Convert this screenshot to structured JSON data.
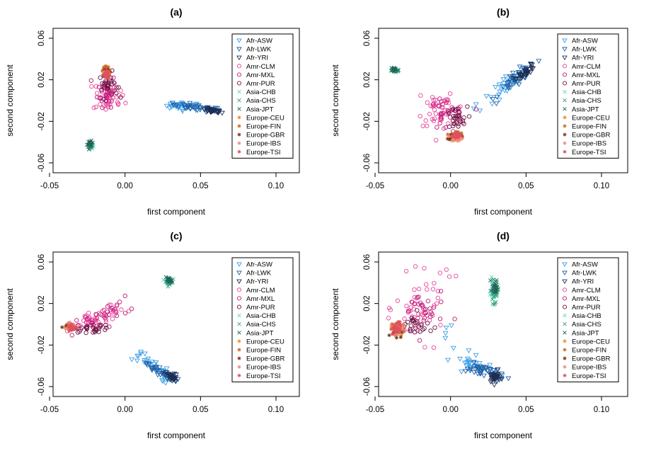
{
  "chart_data": [
    {
      "type": "scatter",
      "title": "(a)",
      "xlabel": "first component",
      "ylabel": "second component",
      "xlim": [
        -0.05,
        0.12
      ],
      "ylim": [
        -0.07,
        0.07
      ],
      "xticks": [
        -0.05,
        0.0,
        0.05,
        0.1
      ],
      "xtick_labels": [
        "-0.05",
        "0.00",
        "0.05",
        "0.10"
      ],
      "yticks": [
        -0.06,
        -0.02,
        0.02,
        0.06
      ],
      "ytick_labels": [
        "-0.06",
        "-0.02",
        "0.02",
        "0.06"
      ],
      "legend_position": "top-right",
      "clusters": [
        {
          "group": "Afr-ASW",
          "cx": 0.04,
          "cy": -0.005,
          "sx": 0.006,
          "sy": 0.002,
          "n": 25,
          "trail": [
            -0.015,
            0.0
          ],
          "slope": -0.08
        },
        {
          "group": "Afr-LWK",
          "cx": 0.048,
          "cy": -0.007,
          "sx": 0.008,
          "sy": 0.0015,
          "n": 40,
          "slope": -0.18
        },
        {
          "group": "Afr-YRI",
          "cx": 0.058,
          "cy": -0.01,
          "sx": 0.003,
          "sy": 0.001,
          "n": 30,
          "slope": -0.2
        },
        {
          "group": "Amr-CLM",
          "cx": -0.013,
          "cy": 0.005,
          "sx": 0.004,
          "sy": 0.008,
          "n": 40,
          "trail": [
            0.013,
            -0.003
          ]
        },
        {
          "group": "Amr-MXL",
          "cx": -0.012,
          "cy": 0.01,
          "sx": 0.003,
          "sy": 0.008,
          "n": 30
        },
        {
          "group": "Amr-PUR",
          "cx": -0.011,
          "cy": 0.015,
          "sx": 0.003,
          "sy": 0.006,
          "n": 25
        },
        {
          "group": "Asia-CHB",
          "cx": -0.023,
          "cy": -0.044,
          "sx": 0.0008,
          "sy": 0.0015,
          "n": 20
        },
        {
          "group": "Asia-CHS",
          "cx": -0.023,
          "cy": -0.043,
          "sx": 0.0008,
          "sy": 0.0015,
          "n": 20
        },
        {
          "group": "Asia-JPT",
          "cx": -0.023,
          "cy": -0.042,
          "sx": 0.0008,
          "sy": 0.0015,
          "n": 15
        },
        {
          "group": "Europe-CEU",
          "cx": -0.012,
          "cy": 0.028,
          "sx": 0.0012,
          "sy": 0.002,
          "n": 25
        },
        {
          "group": "Europe-FIN",
          "cx": -0.013,
          "cy": 0.029,
          "sx": 0.0012,
          "sy": 0.0018,
          "n": 25
        },
        {
          "group": "Europe-GBR",
          "cx": -0.012,
          "cy": 0.027,
          "sx": 0.0012,
          "sy": 0.002,
          "n": 20
        },
        {
          "group": "Europe-IBS",
          "cx": -0.012,
          "cy": 0.026,
          "sx": 0.0012,
          "sy": 0.002,
          "n": 20
        },
        {
          "group": "Europe-TSI",
          "cx": -0.012,
          "cy": 0.025,
          "sx": 0.0012,
          "sy": 0.002,
          "n": 25
        }
      ]
    },
    {
      "type": "scatter",
      "title": "(b)",
      "xlabel": "first component",
      "ylabel": "second component",
      "xlim": [
        -0.05,
        0.12
      ],
      "ylim": [
        -0.07,
        0.07
      ],
      "xticks": [
        -0.05,
        0.0,
        0.05,
        0.1
      ],
      "xtick_labels": [
        "-0.05",
        "0.00",
        "0.05",
        "0.10"
      ],
      "yticks": [
        -0.06,
        -0.02,
        0.02,
        0.06
      ],
      "ytick_labels": [
        "-0.06",
        "-0.02",
        "0.02",
        "0.06"
      ],
      "legend_position": "top-right",
      "clusters": [
        {
          "group": "Afr-ASW",
          "cx": 0.038,
          "cy": 0.014,
          "sx": 0.006,
          "sy": 0.005,
          "n": 25,
          "trail": [
            -0.025,
            -0.02
          ],
          "slope": 1.0
        },
        {
          "group": "Afr-LWK",
          "cx": 0.044,
          "cy": 0.021,
          "sx": 0.006,
          "sy": 0.004,
          "n": 40,
          "slope": 1.0
        },
        {
          "group": "Afr-YRI",
          "cx": 0.05,
          "cy": 0.028,
          "sx": 0.003,
          "sy": 0.002,
          "n": 30,
          "slope": 1.0
        },
        {
          "group": "Amr-CLM",
          "cx": -0.005,
          "cy": -0.01,
          "sx": 0.008,
          "sy": 0.007,
          "n": 40,
          "trail": [
            -0.015,
            0.015
          ]
        },
        {
          "group": "Amr-MXL",
          "cx": -0.002,
          "cy": -0.014,
          "sx": 0.006,
          "sy": 0.007,
          "n": 30
        },
        {
          "group": "Amr-PUR",
          "cx": 0.003,
          "cy": -0.018,
          "sx": 0.004,
          "sy": 0.006,
          "n": 25
        },
        {
          "group": "Asia-CHB",
          "cx": -0.037,
          "cy": 0.029,
          "sx": 0.0012,
          "sy": 0.0012,
          "n": 20
        },
        {
          "group": "Asia-CHS",
          "cx": -0.037,
          "cy": 0.029,
          "sx": 0.0012,
          "sy": 0.0012,
          "n": 20
        },
        {
          "group": "Asia-JPT",
          "cx": -0.037,
          "cy": 0.03,
          "sx": 0.0012,
          "sy": 0.0012,
          "n": 15
        },
        {
          "group": "Europe-CEU",
          "cx": 0.003,
          "cy": -0.034,
          "sx": 0.002,
          "sy": 0.0015,
          "n": 25
        },
        {
          "group": "Europe-FIN",
          "cx": 0.004,
          "cy": -0.033,
          "sx": 0.002,
          "sy": 0.0015,
          "n": 25
        },
        {
          "group": "Europe-GBR",
          "cx": 0.003,
          "cy": -0.035,
          "sx": 0.002,
          "sy": 0.0015,
          "n": 20
        },
        {
          "group": "Europe-IBS",
          "cx": 0.004,
          "cy": -0.036,
          "sx": 0.002,
          "sy": 0.0015,
          "n": 20
        },
        {
          "group": "Europe-TSI",
          "cx": 0.003,
          "cy": -0.034,
          "sx": 0.002,
          "sy": 0.0015,
          "n": 25
        }
      ]
    },
    {
      "type": "scatter",
      "title": "(c)",
      "xlabel": "first component",
      "ylabel": "second component",
      "xlim": [
        -0.05,
        0.12
      ],
      "ylim": [
        -0.07,
        0.07
      ],
      "xticks": [
        -0.05,
        0.0,
        0.05,
        0.1
      ],
      "xtick_labels": [
        "-0.05",
        "0.00",
        "0.05",
        "0.10"
      ],
      "yticks": [
        -0.06,
        -0.02,
        0.02,
        0.06
      ],
      "ytick_labels": [
        "-0.06",
        "-0.02",
        "0.02",
        "0.06"
      ],
      "legend_position": "top-right",
      "clusters": [
        {
          "group": "Afr-ASW",
          "cx": 0.018,
          "cy": -0.04,
          "sx": 0.006,
          "sy": 0.004,
          "n": 25,
          "trail": [
            -0.012,
            0.01
          ],
          "slope": -1.0
        },
        {
          "group": "Afr-LWK",
          "cx": 0.024,
          "cy": -0.046,
          "sx": 0.005,
          "sy": 0.002,
          "n": 40,
          "slope": -0.8
        },
        {
          "group": "Afr-YRI",
          "cx": 0.031,
          "cy": -0.051,
          "sx": 0.002,
          "sy": 0.002,
          "n": 30,
          "slope": -0.5
        },
        {
          "group": "Amr-CLM",
          "cx": -0.018,
          "cy": 0.005,
          "sx": 0.009,
          "sy": 0.005,
          "n": 40,
          "trail": [
            0.02,
            0.01
          ],
          "slope": 0.6
        },
        {
          "group": "Amr-MXL",
          "cx": -0.015,
          "cy": 0.008,
          "sx": 0.009,
          "sy": 0.005,
          "n": 30,
          "slope": 0.6
        },
        {
          "group": "Amr-PUR",
          "cx": -0.022,
          "cy": -0.004,
          "sx": 0.006,
          "sy": 0.002,
          "n": 25
        },
        {
          "group": "Asia-CHB",
          "cx": 0.029,
          "cy": 0.042,
          "sx": 0.0012,
          "sy": 0.0015,
          "n": 20
        },
        {
          "group": "Asia-CHS",
          "cx": 0.029,
          "cy": 0.041,
          "sx": 0.0012,
          "sy": 0.0015,
          "n": 20
        },
        {
          "group": "Asia-JPT",
          "cx": 0.029,
          "cy": 0.042,
          "sx": 0.0012,
          "sy": 0.0015,
          "n": 15
        },
        {
          "group": "Europe-CEU",
          "cx": -0.036,
          "cy": -0.002,
          "sx": 0.0015,
          "sy": 0.0012,
          "n": 25
        },
        {
          "group": "Europe-FIN",
          "cx": -0.035,
          "cy": -0.002,
          "sx": 0.0015,
          "sy": 0.0012,
          "n": 25
        },
        {
          "group": "Europe-GBR",
          "cx": -0.036,
          "cy": -0.003,
          "sx": 0.0015,
          "sy": 0.0012,
          "n": 20
        },
        {
          "group": "Europe-IBS",
          "cx": -0.036,
          "cy": -0.002,
          "sx": 0.0015,
          "sy": 0.0012,
          "n": 20
        },
        {
          "group": "Europe-TSI",
          "cx": -0.035,
          "cy": -0.003,
          "sx": 0.0015,
          "sy": 0.0012,
          "n": 25
        }
      ]
    },
    {
      "type": "scatter",
      "title": "(d)",
      "xlabel": "first component",
      "ylabel": "second component",
      "xlim": [
        -0.05,
        0.12
      ],
      "ylim": [
        -0.07,
        0.07
      ],
      "xticks": [
        -0.05,
        0.0,
        0.05,
        0.1
      ],
      "xtick_labels": [
        "-0.05",
        "0.00",
        "0.05",
        "0.10"
      ],
      "yticks": [
        -0.06,
        -0.02,
        0.02,
        0.06
      ],
      "ytick_labels": [
        "-0.06",
        "-0.02",
        "0.02",
        "0.06"
      ],
      "legend_position": "top-right",
      "clusters": [
        {
          "group": "Afr-ASW",
          "cx": 0.015,
          "cy": -0.04,
          "sx": 0.007,
          "sy": 0.004,
          "n": 25,
          "trail": [
            -0.02,
            0.04
          ],
          "slope": -0.4
        },
        {
          "group": "Afr-LWK",
          "cx": 0.022,
          "cy": -0.045,
          "sx": 0.006,
          "sy": 0.003,
          "n": 40,
          "slope": -0.3
        },
        {
          "group": "Afr-YRI",
          "cx": 0.029,
          "cy": -0.051,
          "sx": 0.002,
          "sy": 0.003,
          "n": 30
        },
        {
          "group": "Amr-CLM",
          "cx": -0.02,
          "cy": 0.015,
          "sx": 0.008,
          "sy": 0.015,
          "n": 40,
          "trail": [
            0.02,
            0.045
          ]
        },
        {
          "group": "Amr-MXL",
          "cx": -0.018,
          "cy": 0.01,
          "sx": 0.007,
          "sy": 0.012,
          "n": 30
        },
        {
          "group": "Amr-PUR",
          "cx": -0.024,
          "cy": -0.002,
          "sx": 0.006,
          "sy": 0.006,
          "n": 25
        },
        {
          "group": "Asia-CHB",
          "cx": 0.029,
          "cy": 0.033,
          "sx": 0.0012,
          "sy": 0.005,
          "n": 25
        },
        {
          "group": "Asia-CHS",
          "cx": 0.029,
          "cy": 0.03,
          "sx": 0.0012,
          "sy": 0.005,
          "n": 25
        },
        {
          "group": "Asia-JPT",
          "cx": 0.03,
          "cy": 0.037,
          "sx": 0.0012,
          "sy": 0.004,
          "n": 20
        },
        {
          "group": "Europe-CEU",
          "cx": -0.036,
          "cy": -0.005,
          "sx": 0.0018,
          "sy": 0.003,
          "n": 25
        },
        {
          "group": "Europe-FIN",
          "cx": -0.035,
          "cy": -0.004,
          "sx": 0.0018,
          "sy": 0.003,
          "n": 25
        },
        {
          "group": "Europe-GBR",
          "cx": -0.036,
          "cy": -0.006,
          "sx": 0.0018,
          "sy": 0.003,
          "n": 20
        },
        {
          "group": "Europe-IBS",
          "cx": -0.035,
          "cy": -0.005,
          "sx": 0.0018,
          "sy": 0.003,
          "n": 20
        },
        {
          "group": "Europe-TSI",
          "cx": -0.036,
          "cy": -0.004,
          "sx": 0.0018,
          "sy": 0.003,
          "n": 25
        }
      ]
    }
  ],
  "legend": [
    {
      "label": "Afr-ASW",
      "marker": "triangle-down",
      "color": "#3d9fe6"
    },
    {
      "label": "Afr-LWK",
      "marker": "triangle-down",
      "color": "#1f62a8"
    },
    {
      "label": "Afr-YRI",
      "marker": "triangle-down",
      "color": "#1c2f55"
    },
    {
      "label": "Amr-CLM",
      "marker": "circle",
      "color": "#e8479c"
    },
    {
      "label": "Amr-MXL",
      "marker": "circle",
      "color": "#bf1a7a"
    },
    {
      "label": "Amr-PUR",
      "marker": "circle",
      "color": "#6a1240"
    },
    {
      "label": "Asia-CHB",
      "marker": "cross",
      "color": "#66ddb0"
    },
    {
      "label": "Asia-CHS",
      "marker": "cross",
      "color": "#2fa37f"
    },
    {
      "label": "Asia-JPT",
      "marker": "cross",
      "color": "#24615a"
    },
    {
      "label": "Europe-CEU",
      "marker": "asterisk",
      "color": "#ef8a2c"
    },
    {
      "label": "Europe-FIN",
      "marker": "asterisk",
      "color": "#c86a22"
    },
    {
      "label": "Europe-GBR",
      "marker": "asterisk",
      "color": "#7a3a12"
    },
    {
      "label": "Europe-IBS",
      "marker": "asterisk",
      "color": "#f08a78"
    },
    {
      "label": "Europe-TSI",
      "marker": "asterisk",
      "color": "#e0505f"
    }
  ]
}
